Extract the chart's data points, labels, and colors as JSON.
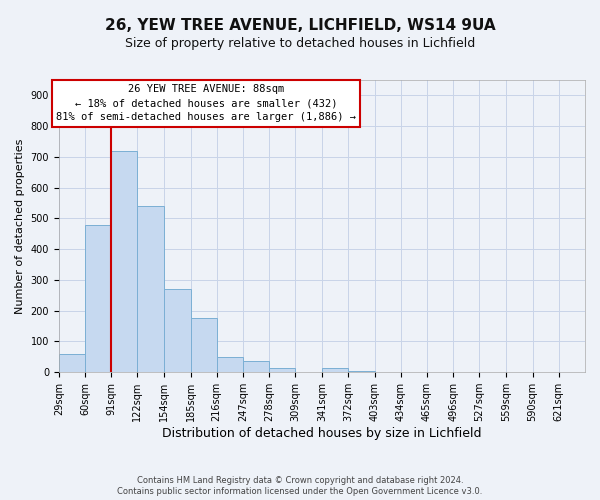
{
  "title": "26, YEW TREE AVENUE, LICHFIELD, WS14 9UA",
  "subtitle": "Size of property relative to detached houses in Lichfield",
  "xlabel": "Distribution of detached houses by size in Lichfield",
  "ylabel": "Number of detached properties",
  "bar_edges": [
    29,
    60,
    91,
    122,
    154,
    185,
    216,
    247,
    278,
    309,
    341,
    372,
    403,
    434,
    465,
    496,
    527,
    559,
    590,
    621,
    652
  ],
  "bar_values": [
    60,
    480,
    720,
    540,
    270,
    175,
    50,
    35,
    15,
    0,
    15,
    5,
    0,
    0,
    0,
    0,
    0,
    0,
    0,
    0
  ],
  "bar_color": "#c6d9f0",
  "bar_edgecolor": "#7bafd4",
  "vline_x": 91,
  "vline_color": "#cc0000",
  "ylim": [
    0,
    950
  ],
  "yticks": [
    0,
    100,
    200,
    300,
    400,
    500,
    600,
    700,
    800,
    900
  ],
  "annotation_box_text": "26 YEW TREE AVENUE: 88sqm\n← 18% of detached houses are smaller (432)\n81% of semi-detached houses are larger (1,886) →",
  "annotation_box_color": "#ffffff",
  "annotation_box_edgecolor": "#cc0000",
  "footer_line1": "Contains HM Land Registry data © Crown copyright and database right 2024.",
  "footer_line2": "Contains public sector information licensed under the Open Government Licence v3.0.",
  "grid_color": "#c8d4e8",
  "background_color": "#eef2f8",
  "title_fontsize": 11,
  "subtitle_fontsize": 9,
  "ylabel_fontsize": 8,
  "xlabel_fontsize": 9,
  "tick_fontsize": 7,
  "annot_fontsize": 7.5,
  "footer_fontsize": 6
}
